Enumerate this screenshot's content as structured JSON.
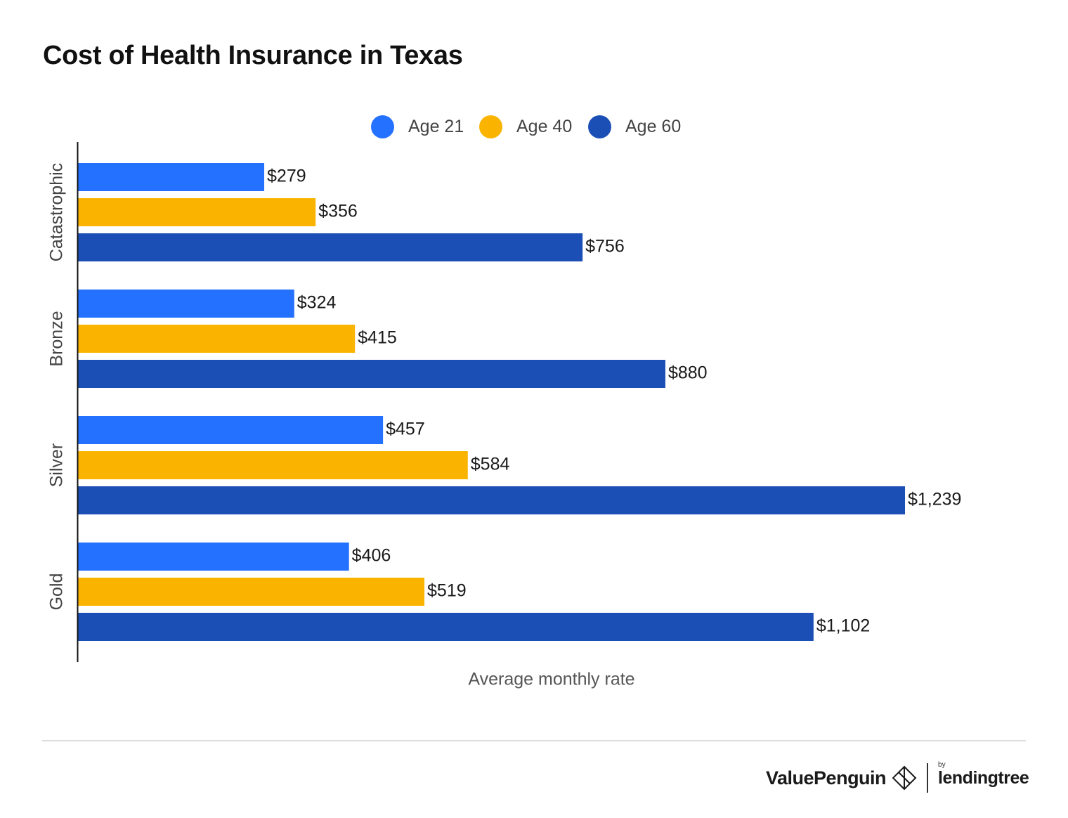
{
  "title": "Cost of Health Insurance in Texas",
  "legend": [
    {
      "label": "Age 21",
      "color": "#2470ff"
    },
    {
      "label": "Age 40",
      "color": "#fab400"
    },
    {
      "label": "Age 60",
      "color": "#1b4fb5"
    }
  ],
  "chart_data": {
    "type": "bar",
    "orientation": "horizontal",
    "title": "Cost of Health Insurance in Texas",
    "xlabel": "Average monthly rate",
    "ylabel": "",
    "categories": [
      "Catastrophic",
      "Bronze",
      "Silver",
      "Gold"
    ],
    "series": [
      {
        "name": "Age 21",
        "color": "#2470ff",
        "values": [
          279,
          324,
          457,
          406
        ],
        "labels": [
          "$279",
          "$324",
          "$457",
          "$406"
        ]
      },
      {
        "name": "Age 40",
        "color": "#fab400",
        "values": [
          356,
          415,
          584,
          519
        ],
        "labels": [
          "$356",
          "$415",
          "$584",
          "$519"
        ]
      },
      {
        "name": "Age 60",
        "color": "#1b4fb5",
        "values": [
          756,
          880,
          1239,
          1102
        ],
        "labels": [
          "$756",
          "$880",
          "$1,239",
          "$1,102"
        ]
      }
    ],
    "xlim": [
      0,
      1239
    ],
    "grid": false,
    "legend_position": "top"
  },
  "footer": {
    "brand": "ValuePenguin",
    "by": "by",
    "partner": "lendingtree"
  }
}
